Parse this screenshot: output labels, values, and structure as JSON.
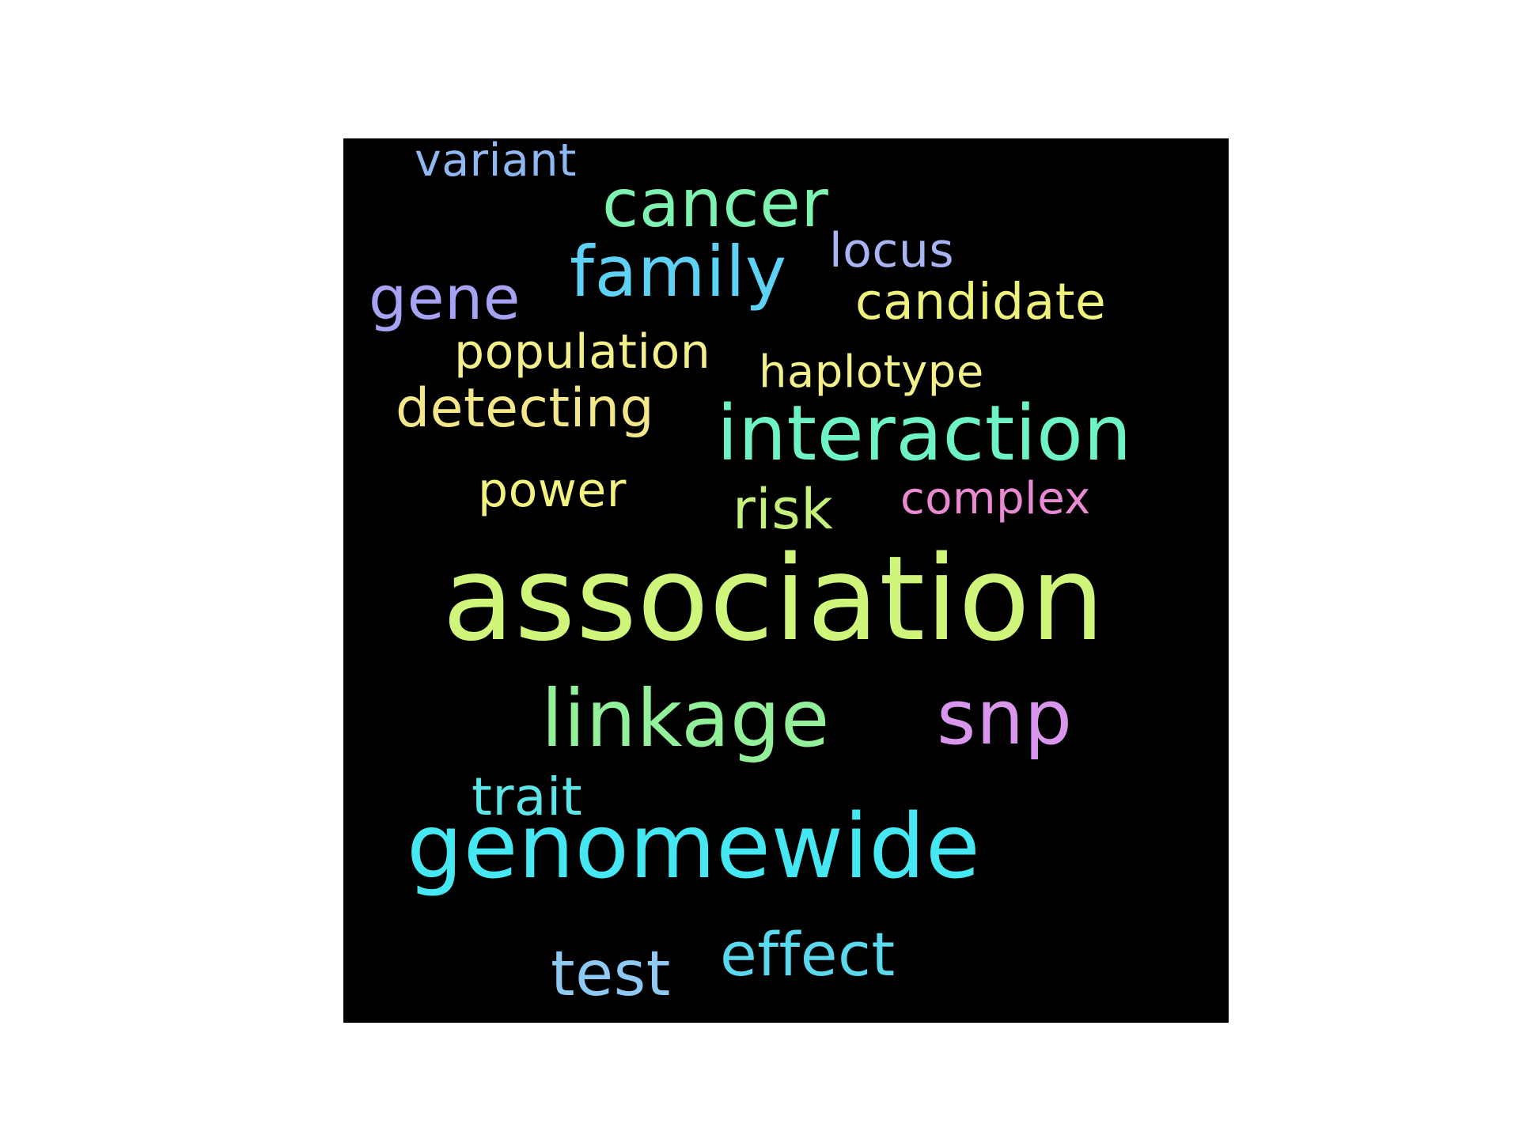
{
  "wordcloud": {
    "words": [
      {
        "id": "variant",
        "text": "variant",
        "color": "#8fb8f2"
      },
      {
        "id": "cancer",
        "text": "cancer",
        "color": "#7ef2b0"
      },
      {
        "id": "locus",
        "text": "locus",
        "color": "#a9b4f5"
      },
      {
        "id": "family",
        "text": "family",
        "color": "#5ed2f5"
      },
      {
        "id": "gene",
        "text": "gene",
        "color": "#a7a2f4"
      },
      {
        "id": "candidate",
        "text": "candidate",
        "color": "#eef17c"
      },
      {
        "id": "population",
        "text": "population",
        "color": "#f3ef8a"
      },
      {
        "id": "haplotype",
        "text": "haplotype",
        "color": "#f3ef8a"
      },
      {
        "id": "detecting",
        "text": "detecting",
        "color": "#f3e78a"
      },
      {
        "id": "interaction",
        "text": "interaction",
        "color": "#6ef2c7"
      },
      {
        "id": "power",
        "text": "power",
        "color": "#f2f07e"
      },
      {
        "id": "complex",
        "text": "complex",
        "color": "#e98ad3"
      },
      {
        "id": "risk",
        "text": "risk",
        "color": "#c5f07a"
      },
      {
        "id": "association",
        "text": "association",
        "color": "#cff57a"
      },
      {
        "id": "linkage",
        "text": "linkage",
        "color": "#93f09a"
      },
      {
        "id": "snp",
        "text": "snp",
        "color": "#d897ec"
      },
      {
        "id": "trait",
        "text": "trait",
        "color": "#5de4e7"
      },
      {
        "id": "genomewide",
        "text": "genomewide",
        "color": "#44e7f2"
      },
      {
        "id": "effect",
        "text": "effect",
        "color": "#5ad8ee"
      },
      {
        "id": "test",
        "text": "test",
        "color": "#8ec9f3"
      }
    ]
  }
}
